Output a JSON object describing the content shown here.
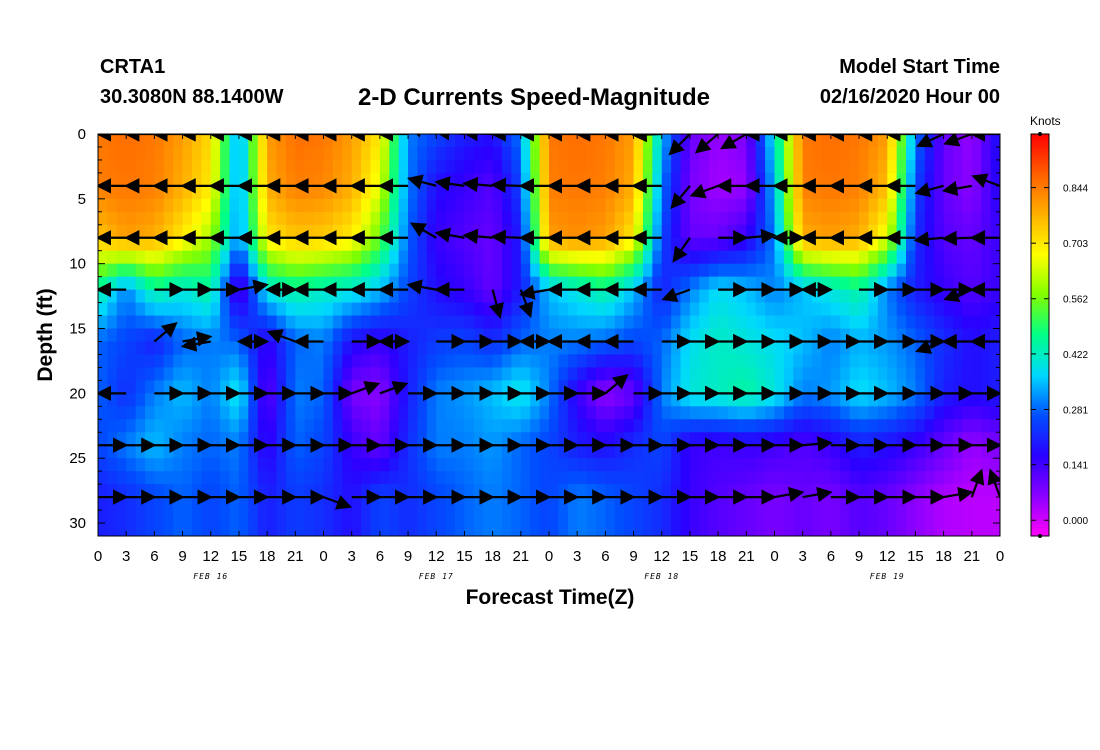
{
  "header": {
    "station": "CRTA1",
    "coords": "30.3080N 88.1400W",
    "title": "2-D Currents Speed-Magnitude",
    "model_label": "Model Start Time",
    "model_run": "02/16/2020 Hour 00"
  },
  "chart_data": {
    "type": "heatmap",
    "title": "2-D Currents Speed-Magnitude",
    "xlabel": "Forecast Time(Z)",
    "ylabel": "Depth (ft)",
    "xlim": [
      0,
      96
    ],
    "ylim": [
      31,
      0
    ],
    "x_tick_labels": [
      "0",
      "3",
      "6",
      "9",
      "12",
      "15",
      "18",
      "21",
      "0",
      "3",
      "6",
      "9",
      "12",
      "15",
      "18",
      "21",
      "0",
      "3",
      "6",
      "9",
      "12",
      "15",
      "18",
      "21",
      "0",
      "3",
      "6",
      "9",
      "12",
      "15",
      "18",
      "21",
      "0"
    ],
    "date_labels": [
      {
        "hour": 12,
        "label": "FEB 16"
      },
      {
        "hour": 36,
        "label": "FEB 17"
      },
      {
        "hour": 60,
        "label": "FEB 18"
      },
      {
        "hour": 84,
        "label": "FEB 19"
      }
    ],
    "y_ticks": [
      0,
      5,
      10,
      15,
      20,
      25,
      30
    ],
    "colorbar": {
      "units": "Knots",
      "min": -0.04,
      "max": 0.98,
      "ticks": [
        0.0,
        0.141,
        0.281,
        0.422,
        0.562,
        0.703,
        0.844
      ],
      "tick_labels": [
        "0.000",
        "0.141",
        "0.281",
        "0.422",
        "0.562",
        "0.703",
        "0.844"
      ],
      "palette": [
        "#ff00ff",
        "#8a00ff",
        "#2a00ff",
        "#0050ff",
        "#00d8ff",
        "#00ff88",
        "#80ff00",
        "#ffff00",
        "#ffb000",
        "#ff6000",
        "#ff0000"
      ]
    },
    "depths": [
      0,
      4,
      8,
      12,
      16,
      20,
      24,
      28
    ],
    "times": [
      0,
      3,
      6,
      9,
      12,
      15,
      18,
      21,
      24,
      27,
      30,
      33,
      36,
      39,
      42,
      45,
      48,
      51,
      54,
      57,
      60,
      63,
      66,
      69,
      72,
      75,
      78,
      81,
      84,
      87,
      90,
      93,
      96
    ],
    "speed": [
      [
        0.85,
        0.86,
        0.85,
        0.8,
        0.72,
        0.3,
        0.8,
        0.86,
        0.85,
        0.8,
        0.7,
        0.3,
        0.25,
        0.2,
        0.18,
        0.3,
        0.85,
        0.86,
        0.85,
        0.8,
        0.35,
        0.1,
        0.05,
        0.08,
        0.4,
        0.85,
        0.86,
        0.85,
        0.8,
        0.3,
        0.1,
        0.05,
        0.2
      ],
      [
        0.84,
        0.85,
        0.84,
        0.78,
        0.7,
        0.3,
        0.78,
        0.84,
        0.83,
        0.78,
        0.65,
        0.3,
        0.18,
        0.15,
        0.12,
        0.25,
        0.84,
        0.85,
        0.84,
        0.78,
        0.3,
        0.08,
        0.04,
        0.05,
        0.35,
        0.84,
        0.85,
        0.84,
        0.76,
        0.25,
        0.1,
        0.06,
        0.18
      ],
      [
        0.75,
        0.8,
        0.78,
        0.7,
        0.6,
        0.3,
        0.7,
        0.75,
        0.74,
        0.7,
        0.55,
        0.28,
        0.15,
        0.12,
        0.1,
        0.2,
        0.8,
        0.82,
        0.8,
        0.7,
        0.25,
        0.1,
        0.1,
        0.15,
        0.3,
        0.78,
        0.8,
        0.78,
        0.65,
        0.22,
        0.12,
        0.1,
        0.15
      ],
      [
        0.45,
        0.3,
        0.45,
        0.4,
        0.45,
        0.1,
        0.4,
        0.45,
        0.42,
        0.4,
        0.35,
        0.25,
        0.18,
        0.15,
        0.1,
        0.2,
        0.35,
        0.4,
        0.45,
        0.35,
        0.2,
        0.3,
        0.38,
        0.35,
        0.3,
        0.35,
        0.4,
        0.45,
        0.3,
        0.2,
        0.15,
        0.12,
        0.15
      ],
      [
        0.28,
        0.25,
        0.2,
        0.28,
        0.3,
        0.28,
        0.15,
        0.28,
        0.3,
        0.18,
        0.15,
        0.2,
        0.24,
        0.25,
        0.22,
        0.28,
        0.3,
        0.3,
        0.28,
        0.25,
        0.28,
        0.38,
        0.42,
        0.4,
        0.38,
        0.35,
        0.3,
        0.34,
        0.32,
        0.28,
        0.22,
        0.18,
        0.2
      ],
      [
        0.28,
        0.22,
        0.3,
        0.35,
        0.3,
        0.4,
        0.1,
        0.3,
        0.28,
        0.08,
        0.06,
        0.2,
        0.3,
        0.32,
        0.35,
        0.4,
        0.3,
        0.15,
        0.05,
        0.1,
        0.3,
        0.4,
        0.42,
        0.45,
        0.4,
        0.3,
        0.32,
        0.38,
        0.35,
        0.3,
        0.2,
        0.18,
        0.2
      ],
      [
        0.25,
        0.3,
        0.35,
        0.3,
        0.28,
        0.3,
        0.15,
        0.28,
        0.25,
        0.15,
        0.1,
        0.22,
        0.3,
        0.3,
        0.32,
        0.28,
        0.25,
        0.2,
        0.18,
        0.22,
        0.25,
        0.15,
        0.14,
        0.15,
        0.14,
        0.12,
        0.15,
        0.2,
        0.18,
        0.15,
        0.1,
        0.05,
        0.08
      ],
      [
        0.2,
        0.22,
        0.25,
        0.28,
        0.25,
        0.28,
        0.2,
        0.24,
        0.22,
        0.18,
        0.25,
        0.22,
        0.25,
        0.28,
        0.3,
        0.28,
        0.25,
        0.3,
        0.28,
        0.25,
        0.22,
        0.15,
        0.12,
        0.1,
        0.08,
        0.1,
        0.08,
        0.12,
        0.1,
        0.06,
        0.03,
        0.02,
        0.02
      ]
    ],
    "vectors": [
      {
        "depth": 0,
        "x": [
          0,
          3,
          6,
          9,
          12,
          15,
          18,
          21,
          24,
          27,
          30,
          33,
          36,
          39,
          42,
          45,
          48,
          51,
          54,
          57,
          60,
          63,
          66,
          69,
          72,
          75,
          78,
          81,
          84,
          87,
          90,
          93,
          96
        ],
        "dir": [
          180,
          180,
          180,
          180,
          180,
          180,
          180,
          180,
          180,
          180,
          180,
          180,
          165,
          175,
          178,
          180,
          180,
          180,
          180,
          180,
          182,
          225,
          220,
          210,
          180,
          180,
          180,
          180,
          180,
          180,
          205,
          200,
          180
        ]
      },
      {
        "depth": 4,
        "x": [
          0,
          3,
          6,
          9,
          12,
          15,
          18,
          21,
          24,
          27,
          30,
          33,
          36,
          39,
          42,
          45,
          48,
          51,
          54,
          57,
          60,
          63,
          66,
          69,
          72,
          75,
          78,
          81,
          84,
          87,
          90,
          93,
          96
        ],
        "dir": [
          180,
          180,
          180,
          180,
          180,
          180,
          180,
          180,
          180,
          180,
          180,
          180,
          165,
          172,
          175,
          178,
          180,
          180,
          180,
          180,
          180,
          230,
          200,
          180,
          180,
          180,
          180,
          180,
          180,
          180,
          195,
          190,
          160
        ]
      },
      {
        "depth": 8,
        "x": [
          0,
          3,
          6,
          9,
          12,
          15,
          18,
          21,
          24,
          27,
          30,
          33,
          36,
          39,
          42,
          45,
          48,
          51,
          54,
          57,
          60,
          63,
          66,
          69,
          72,
          75,
          78,
          81,
          84,
          87,
          90,
          93,
          96
        ],
        "dir": [
          180,
          180,
          180,
          180,
          180,
          180,
          180,
          180,
          180,
          180,
          180,
          180,
          150,
          170,
          175,
          178,
          180,
          180,
          180,
          180,
          180,
          235,
          0,
          5,
          0,
          180,
          180,
          180,
          180,
          180,
          185,
          182,
          180
        ]
      },
      {
        "depth": 12,
        "x": [
          0,
          3,
          6,
          9,
          12,
          15,
          18,
          21,
          24,
          27,
          30,
          33,
          36,
          39,
          42,
          45,
          48,
          51,
          54,
          57,
          60,
          63,
          66,
          69,
          72,
          75,
          78,
          81,
          84,
          87,
          90,
          93,
          96
        ],
        "dir": [
          180,
          180,
          0,
          0,
          0,
          10,
          0,
          180,
          180,
          180,
          180,
          180,
          170,
          180,
          285,
          290,
          190,
          180,
          180,
          180,
          180,
          200,
          0,
          0,
          0,
          0,
          180,
          0,
          0,
          0,
          0,
          200,
          180
        ]
      },
      {
        "depth": 16,
        "x": [
          0,
          6,
          9,
          12,
          15,
          18,
          21,
          24,
          27,
          30,
          33,
          36,
          39,
          42,
          45,
          48,
          51,
          54,
          57,
          60,
          63,
          66,
          69,
          72,
          75,
          78,
          81,
          84,
          87,
          90,
          93,
          96
        ],
        "dir": [
          200,
          40,
          10,
          190,
          0,
          180,
          160,
          180,
          0,
          0,
          180,
          0,
          0,
          0,
          0,
          180,
          180,
          180,
          180,
          0,
          0,
          0,
          0,
          0,
          0,
          0,
          0,
          0,
          0,
          200,
          180,
          180
        ]
      },
      {
        "depth": 20,
        "x": [
          0,
          3,
          6,
          9,
          12,
          15,
          18,
          21,
          24,
          27,
          30,
          33,
          36,
          39,
          42,
          45,
          48,
          51,
          54,
          57,
          60,
          63,
          66,
          69,
          72,
          75,
          78,
          81,
          84,
          87,
          90,
          93,
          96
        ],
        "dir": [
          180,
          180,
          0,
          0,
          0,
          0,
          0,
          0,
          0,
          20,
          20,
          0,
          0,
          0,
          0,
          0,
          0,
          0,
          40,
          0,
          0,
          0,
          0,
          0,
          0,
          0,
          0,
          0,
          0,
          0,
          0,
          0,
          0
        ]
      },
      {
        "depth": 24,
        "x": [
          0,
          3,
          6,
          9,
          12,
          15,
          18,
          21,
          24,
          27,
          30,
          33,
          36,
          39,
          42,
          45,
          48,
          51,
          54,
          57,
          60,
          63,
          66,
          69,
          72,
          75,
          78,
          81,
          84,
          87,
          90,
          93,
          96
        ],
        "dir": [
          0,
          0,
          0,
          0,
          0,
          0,
          0,
          0,
          0,
          0,
          0,
          0,
          0,
          0,
          0,
          0,
          0,
          0,
          0,
          0,
          0,
          0,
          0,
          0,
          0,
          5,
          0,
          0,
          0,
          0,
          0,
          0,
          10
        ]
      },
      {
        "depth": 28,
        "x": [
          0,
          3,
          6,
          9,
          12,
          15,
          18,
          21,
          24,
          27,
          30,
          33,
          36,
          39,
          42,
          45,
          48,
          51,
          54,
          57,
          60,
          63,
          66,
          69,
          72,
          75,
          78,
          81,
          84,
          87,
          90,
          93,
          96
        ],
        "dir": [
          0,
          0,
          0,
          0,
          0,
          0,
          0,
          0,
          340,
          0,
          0,
          0,
          0,
          0,
          0,
          0,
          0,
          0,
          0,
          0,
          0,
          0,
          0,
          0,
          10,
          10,
          0,
          0,
          0,
          0,
          10,
          70,
          110
        ]
      }
    ]
  }
}
